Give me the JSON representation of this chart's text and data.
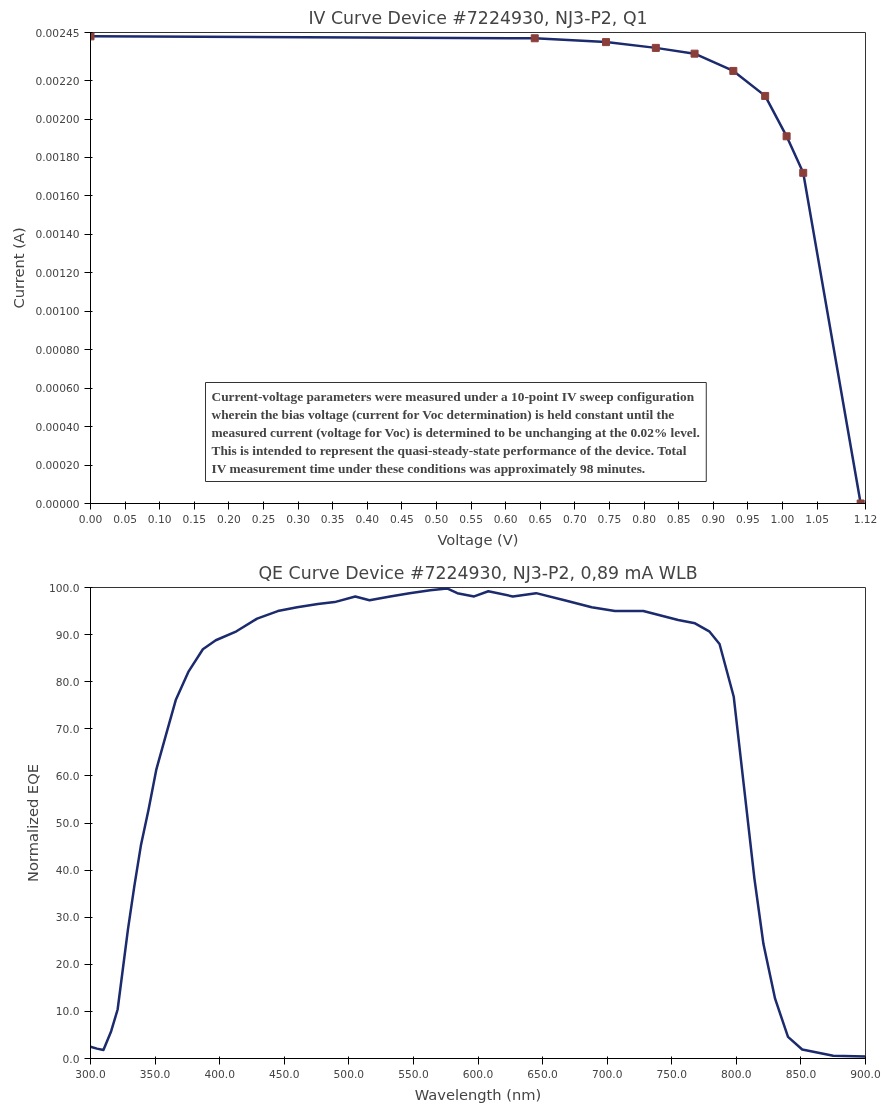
{
  "chart_data": [
    {
      "type": "line",
      "title": "IV Curve Device #7224930, NJ3-P2, Q1",
      "xlabel": "Voltage (V)",
      "ylabel": "Current (A)",
      "xlim": [
        0,
        1.12
      ],
      "ylim": [
        0,
        0.00245
      ],
      "xticks": [
        {
          "value": 0,
          "label": "0.00"
        },
        0.05,
        {
          "value": 0.1,
          "label": "0.10"
        },
        0.15,
        {
          "value": 0.2,
          "label": "0.20"
        },
        0.25,
        {
          "value": 0.3,
          "label": "0.30"
        },
        0.35,
        {
          "value": 0.4,
          "label": "0.40"
        },
        0.45,
        {
          "value": 0.5,
          "label": "0.50"
        },
        0.55,
        {
          "value": 0.6,
          "label": "0.60"
        },
        0.65,
        {
          "value": 0.7,
          "label": "0.70"
        },
        0.75,
        {
          "value": 0.8,
          "label": "0.80"
        },
        0.85,
        {
          "value": 0.9,
          "label": "0.90"
        },
        0.95,
        {
          "value": 1.0,
          "label": "1.00"
        },
        1.05,
        {
          "value": 1.12,
          "label": "1.12"
        }
      ],
      "yticks": [
        {
          "value": 0,
          "label": "0.00000"
        },
        {
          "value": 0.0002,
          "label": "0.00020"
        },
        {
          "value": 0.0004,
          "label": "0.00040"
        },
        {
          "value": 0.0006,
          "label": "0.00060"
        },
        {
          "value": 0.0008,
          "label": "0.00080"
        },
        {
          "value": 0.001,
          "label": "0.00100"
        },
        {
          "value": 0.0012,
          "label": "0.00120"
        },
        {
          "value": 0.0014,
          "label": "0.00140"
        },
        {
          "value": 0.0016,
          "label": "0.00160"
        },
        {
          "value": 0.0018,
          "label": "0.00180"
        },
        {
          "value": 0.002,
          "label": "0.00200"
        },
        {
          "value": 0.0022,
          "label": "0.00220"
        },
        {
          "value": 0.00245,
          "label": "0.00245"
        }
      ],
      "grid": false,
      "series": [
        {
          "color": "#1c2a6e",
          "x": [
            0,
            0.642,
            0.745,
            0.817,
            0.873,
            0.929,
            0.975,
            1.006,
            1.03,
            1.113
          ],
          "values": [
            0.00243,
            0.00242,
            0.0024,
            0.00237,
            0.00234,
            0.00225,
            0.00212,
            0.00191,
            0.00172,
            0
          ]
        },
        {
          "type": "scatter",
          "marker": "square",
          "color": "#8b3f3a",
          "x": [
            0,
            0.642,
            0.745,
            0.817,
            0.873,
            0.929,
            0.975,
            1.006,
            1.03,
            1.113
          ],
          "values": [
            0.00243,
            0.00242,
            0.0024,
            0.00237,
            0.00234,
            0.00225,
            0.00212,
            0.00191,
            0.00172,
            0
          ]
        }
      ],
      "annotations": [
        "Current-voltage parameters were measured under a 10-point IV sweep configuration wherein the bias voltage (current for Voc determination) is held constant until the measured current (voltage for Voc) is determined to be unchanging at the 0.02% level. This is intended to represent the quasi-steady-state performance of the device. Total IV measurement time under these conditions was approximately 98 minutes."
      ]
    },
    {
      "type": "line",
      "title": "QE Curve Device #7224930, NJ3-P2, 0,89 mA WLB",
      "xlabel": "Wavelength (nm)",
      "ylabel": "Normalized EQE",
      "xlim": [
        300,
        900
      ],
      "ylim": [
        0,
        100
      ],
      "xticks": [
        {
          "value": 300,
          "label": "300.0"
        },
        {
          "value": 350,
          "label": "350.0"
        },
        {
          "value": 400,
          "label": "400.0"
        },
        {
          "value": 450,
          "label": "450.0"
        },
        {
          "value": 500,
          "label": "500.0"
        },
        {
          "value": 550,
          "label": "550.0"
        },
        {
          "value": 600,
          "label": "600.0"
        },
        {
          "value": 650,
          "label": "650.0"
        },
        {
          "value": 700,
          "label": "700.0"
        },
        {
          "value": 750,
          "label": "750.0"
        },
        {
          "value": 800,
          "label": "800.0"
        },
        {
          "value": 850,
          "label": "850.0"
        },
        {
          "value": 900,
          "label": "900.0"
        }
      ],
      "yticks": [
        {
          "value": 0,
          "label": "0.0"
        },
        {
          "value": 10,
          "label": "10.0"
        },
        {
          "value": 20,
          "label": "20.0"
        },
        {
          "value": 30,
          "label": "30.0"
        },
        {
          "value": 40,
          "label": "40.0"
        },
        {
          "value": 50,
          "label": "50.0"
        },
        {
          "value": 60,
          "label": "60.0"
        },
        {
          "value": 70,
          "label": "70.0"
        },
        {
          "value": 80,
          "label": "80.0"
        },
        {
          "value": 90,
          "label": "90.0"
        },
        {
          "value": 100,
          "label": "100.0"
        }
      ],
      "grid": false,
      "series": [
        {
          "color": "#1c2a6e",
          "x": [
            300,
            305,
            310,
            316,
            321,
            325,
            329,
            334,
            339,
            345,
            351,
            358,
            366,
            376,
            387,
            397,
            413,
            429,
            445,
            460,
            476,
            489,
            505,
            516,
            532,
            547,
            563,
            576,
            584,
            597,
            608,
            627,
            645,
            667,
            688,
            706,
            728,
            755,
            768,
            779,
            787,
            798,
            806,
            814,
            821,
            830,
            840,
            851,
            875,
            900
          ],
          "values": [
            2.5,
            2.1,
            1.8,
            5.8,
            10.4,
            18.9,
            27.4,
            36.7,
            45.2,
            52.9,
            61.4,
            68.3,
            76.1,
            82.2,
            86.9,
            88.8,
            90.7,
            93.4,
            95.0,
            95.8,
            96.5,
            96.9,
            98.1,
            97.3,
            98.1,
            98.8,
            99.4,
            99.8,
            98.8,
            98.1,
            99.2,
            98.1,
            98.8,
            97.3,
            95.8,
            95.0,
            95.0,
            93.1,
            92.4,
            90.7,
            88.0,
            76.8,
            57.5,
            38.2,
            24.3,
            12.7,
            4.6,
            1.9,
            0.6,
            0.4
          ]
        }
      ]
    }
  ]
}
